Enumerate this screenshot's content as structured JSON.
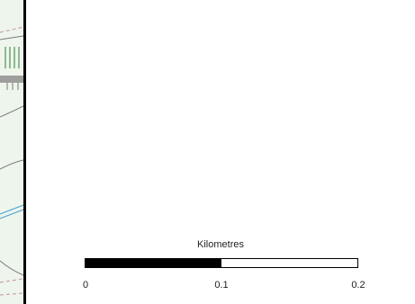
{
  "map": {
    "colors": {
      "land": "#eef5ec",
      "road_outline": "#7a7a7a",
      "water": "#4aa6d9",
      "vegetation": "#2e7d32",
      "boundary_dash": "#c9a2a2"
    }
  },
  "scalebar": {
    "title": "Kilometres",
    "labels": [
      "0",
      "0.1",
      "0.2"
    ],
    "segments": [
      "black",
      "white"
    ]
  }
}
